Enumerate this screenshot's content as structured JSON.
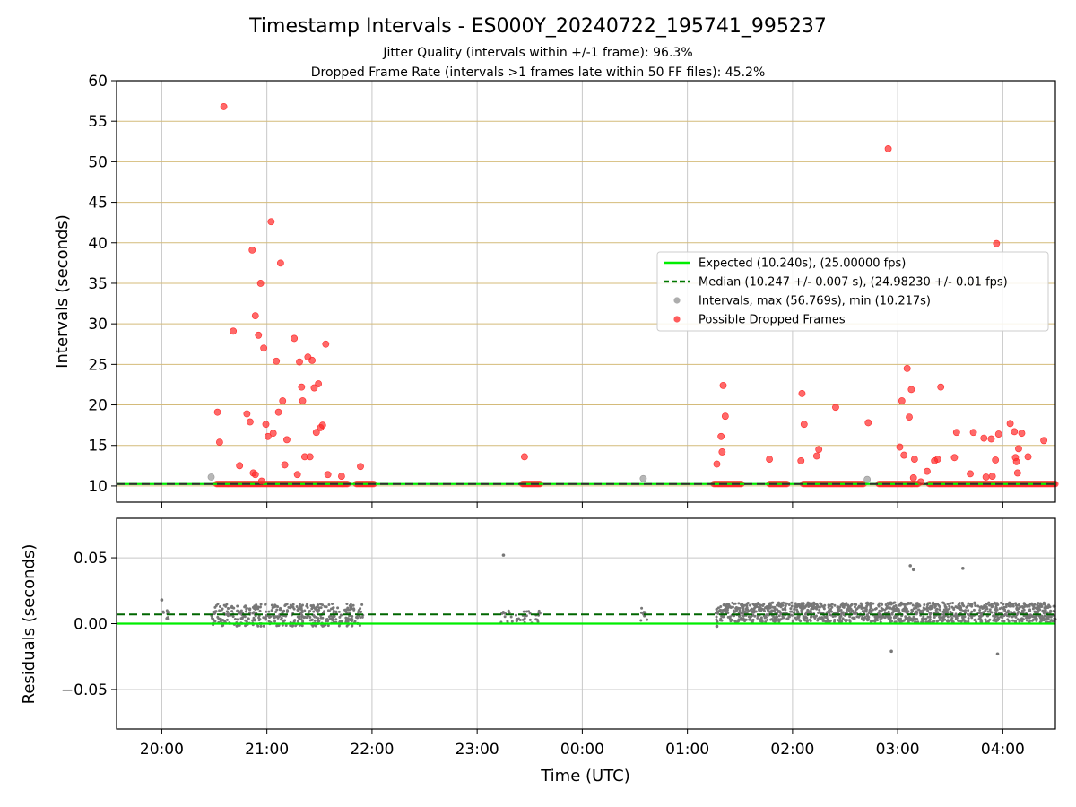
{
  "chart_data": [
    {
      "type": "scatter",
      "title": "Timestamp Intervals - ES000Y_20240722_195741_995237",
      "subtitle_lines": [
        "Jitter Quality (intervals within +/-1 frame): 96.3%",
        "Dropped Frame Rate (intervals >1 frames late within 50 FF files): 45.2%"
      ],
      "xlabel": "Time (UTC)",
      "ylabel": "Intervals (seconds)",
      "xlim_hours": [
        -0.43,
        8.5
      ],
      "ylim": [
        8,
        60
      ],
      "yticks": [
        10,
        15,
        20,
        25,
        30,
        35,
        40,
        45,
        50,
        55,
        60
      ],
      "xticks": [
        {
          "h": 0,
          "label": "20:00"
        },
        {
          "h": 1,
          "label": "21:00"
        },
        {
          "h": 2,
          "label": "22:00"
        },
        {
          "h": 3,
          "label": "23:00"
        },
        {
          "h": 4,
          "label": "00:00"
        },
        {
          "h": 5,
          "label": "01:00"
        },
        {
          "h": 6,
          "label": "02:00"
        },
        {
          "h": 7,
          "label": "03:00"
        },
        {
          "h": 8,
          "label": "04:00"
        }
      ],
      "grid": true,
      "legend_position": "center-right",
      "expected_interval": 10.24,
      "median_interval": 10.247,
      "legend": [
        {
          "label": "Expected (10.240s), (25.00000 fps)",
          "kind": "line",
          "color": "#00ee00"
        },
        {
          "label": "Median (10.247 +/- 0.007 s), (24.98230 +/- 0.01 fps)",
          "kind": "dashed",
          "color": "#007700"
        },
        {
          "label": "Intervals, max (56.769s), min (10.217s)",
          "kind": "dot",
          "color": "#999999"
        },
        {
          "label": "Possible Dropped Frames",
          "kind": "dot",
          "color": "#ff3333"
        }
      ],
      "series": [
        {
          "name": "Possible Dropped Frames",
          "points": [
            [
              0.53,
              19.1
            ],
            [
              0.55,
              15.4
            ],
            [
              0.59,
              56.8
            ],
            [
              0.68,
              29.1
            ],
            [
              0.74,
              12.5
            ],
            [
              0.81,
              18.9
            ],
            [
              0.84,
              17.9
            ],
            [
              0.86,
              39.1
            ],
            [
              0.87,
              11.6
            ],
            [
              0.89,
              11.4
            ],
            [
              0.89,
              31
            ],
            [
              0.92,
              28.6
            ],
            [
              0.94,
              35
            ],
            [
              0.95,
              10.6
            ],
            [
              0.97,
              27
            ],
            [
              0.99,
              17.6
            ],
            [
              1.01,
              16.1
            ],
            [
              1.04,
              42.6
            ],
            [
              1.06,
              16.5
            ],
            [
              1.09,
              25.4
            ],
            [
              1.11,
              19.1
            ],
            [
              1.13,
              37.5
            ],
            [
              1.15,
              20.5
            ],
            [
              1.17,
              12.6
            ],
            [
              1.19,
              15.7
            ],
            [
              1.26,
              28.2
            ],
            [
              1.29,
              11.4
            ],
            [
              1.31,
              25.3
            ],
            [
              1.33,
              22.2
            ],
            [
              1.34,
              20.5
            ],
            [
              1.36,
              13.6
            ],
            [
              1.39,
              25.9
            ],
            [
              1.41,
              13.6
            ],
            [
              1.43,
              25.5
            ],
            [
              1.45,
              22.1
            ],
            [
              1.47,
              16.6
            ],
            [
              1.49,
              22.6
            ],
            [
              1.51,
              17.2
            ],
            [
              1.53,
              17.5
            ],
            [
              1.56,
              27.5
            ],
            [
              1.58,
              11.4
            ],
            [
              1.71,
              11.2
            ],
            [
              1.89,
              12.4
            ],
            [
              3.45,
              13.6
            ],
            [
              5.28,
              12.7
            ],
            [
              5.32,
              16.1
            ],
            [
              5.33,
              14.2
            ],
            [
              5.34,
              22.4
            ],
            [
              5.36,
              18.6
            ],
            [
              5.78,
              13.3
            ],
            [
              6.08,
              13.1
            ],
            [
              6.09,
              21.4
            ],
            [
              6.11,
              17.6
            ],
            [
              6.23,
              13.7
            ],
            [
              6.25,
              14.5
            ],
            [
              6.41,
              19.7
            ],
            [
              6.72,
              17.8
            ],
            [
              6.91,
              51.6
            ],
            [
              7.02,
              14.8
            ],
            [
              7.04,
              20.5
            ],
            [
              7.06,
              13.8
            ],
            [
              7.09,
              24.5
            ],
            [
              7.11,
              18.5
            ],
            [
              7.13,
              21.9
            ],
            [
              7.15,
              11
            ],
            [
              7.16,
              13.3
            ],
            [
              7.22,
              10.5
            ],
            [
              7.28,
              11.8
            ],
            [
              7.35,
              13.1
            ],
            [
              7.38,
              13.3
            ],
            [
              7.41,
              22.2
            ],
            [
              7.54,
              13.5
            ],
            [
              7.56,
              16.6
            ],
            [
              7.69,
              11.5
            ],
            [
              7.72,
              16.6
            ],
            [
              7.82,
              15.9
            ],
            [
              7.84,
              11.1
            ],
            [
              7.89,
              15.8
            ],
            [
              7.9,
              11.2
            ],
            [
              7.93,
              13.2
            ],
            [
              7.94,
              39.9
            ],
            [
              7.96,
              16.4
            ],
            [
              8.07,
              17.7
            ],
            [
              8.11,
              16.7
            ],
            [
              8.12,
              13.5
            ],
            [
              8.13,
              13
            ],
            [
              8.14,
              11.6
            ],
            [
              8.15,
              14.6
            ],
            [
              8.18,
              16.5
            ],
            [
              8.24,
              13.6
            ],
            [
              8.39,
              15.6
            ]
          ]
        },
        {
          "name": "Intervals, max (56.769s), min (10.217s)",
          "points": [
            [
              0.47,
              11.1
            ],
            [
              4.58,
              10.9
            ],
            [
              6.71,
              10.8
            ]
          ]
        }
      ],
      "dropped_band_segments": [
        [
          0.52,
          1.78
        ],
        [
          1.85,
          2.02
        ],
        [
          3.43,
          3.6
        ],
        [
          5.25,
          5.52
        ],
        [
          5.78,
          5.95
        ],
        [
          6.1,
          6.68
        ],
        [
          6.82,
          7.2
        ],
        [
          7.3,
          8.5
        ]
      ]
    },
    {
      "type": "scatter",
      "ylabel": "Residuals (seconds)",
      "ylim": [
        -0.08,
        0.08
      ],
      "yticks": [
        -0.05,
        0.0,
        0.05
      ],
      "ytick_labels": [
        "−0.05",
        "0.00",
        "0.05"
      ],
      "expected_residual": 0.0,
      "median_residual": 0.007,
      "grid": true,
      "series": [
        {
          "name": "Residuals",
          "color": "#777777",
          "outliers": [
            [
              0.0,
              0.018
            ],
            [
              3.25,
              0.052
            ],
            [
              7.12,
              0.044
            ],
            [
              7.15,
              0.041
            ],
            [
              7.62,
              0.042
            ],
            [
              6.94,
              -0.021
            ],
            [
              7.95,
              -0.023
            ],
            [
              5.28,
              -0.002
            ]
          ]
        }
      ],
      "dense_segments": [
        {
          "start": 0.0,
          "end": 0.08,
          "count": 10,
          "min": 0.002,
          "max": 0.01
        },
        {
          "start": 0.47,
          "end": 1.92,
          "count": 420,
          "min": -0.002,
          "max": 0.015
        },
        {
          "start": 3.22,
          "end": 3.6,
          "count": 40,
          "min": 0.0,
          "max": 0.01
        },
        {
          "start": 4.55,
          "end": 4.62,
          "count": 10,
          "min": 0.002,
          "max": 0.012
        },
        {
          "start": 5.27,
          "end": 8.5,
          "count": 1300,
          "min": 0.001,
          "max": 0.016
        }
      ]
    }
  ]
}
